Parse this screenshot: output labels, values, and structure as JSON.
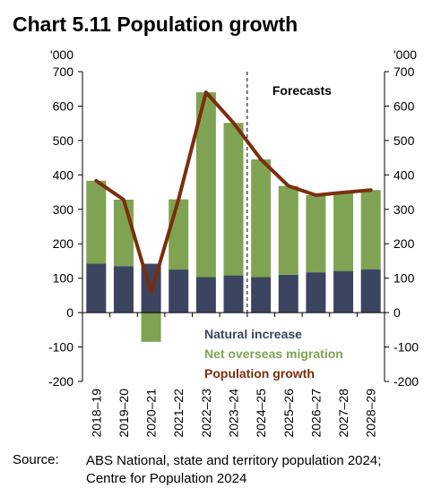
{
  "title": "Chart 5.11 Population growth",
  "source": {
    "label": "Source:",
    "line1": "ABS National, state and territory population 2024;",
    "line2": "Centre for Population 2024"
  },
  "chart_data": {
    "type": "bar",
    "stacked": true,
    "categories": [
      "2018–19",
      "2019–20",
      "2020–21",
      "2021–22",
      "2022–23",
      "2023–24",
      "2024–25",
      "2025–26",
      "2026–27",
      "2027–28",
      "2028–29"
    ],
    "series": [
      {
        "name": "Natural increase",
        "kind": "bar",
        "color": "#3b4560",
        "values": [
          142,
          135,
          142,
          125,
          103,
          108,
          103,
          110,
          117,
          121,
          126
        ]
      },
      {
        "name": "Net overseas migration",
        "kind": "bar",
        "color": "#7fa352",
        "values": [
          241,
          193,
          -85,
          204,
          537,
          443,
          342,
          258,
          224,
          228,
          230
        ]
      },
      {
        "name": "Population growth",
        "kind": "line",
        "color": "#7a2e0e",
        "values": [
          383,
          328,
          58,
          329,
          640,
          551,
          445,
          368,
          341,
          349,
          356
        ]
      }
    ],
    "y_unit_left": "'000",
    "y_unit_right": "'000",
    "ylim": [
      -200,
      700
    ],
    "yticks": [
      -200,
      -100,
      0,
      100,
      200,
      300,
      400,
      500,
      600,
      700
    ],
    "forecast_start": "2024–25",
    "forecast_label": "Forecasts",
    "legend_position": "bottom-center inside plot",
    "grid": false
  }
}
